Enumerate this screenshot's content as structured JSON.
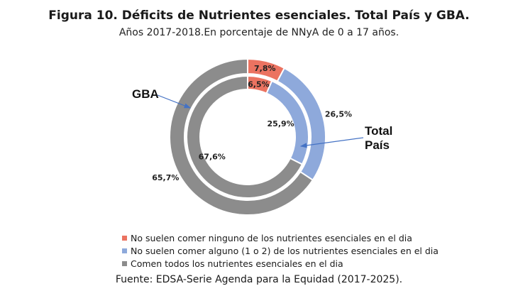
{
  "chart_data": {
    "type": "pie",
    "title": "Figura 10. Déficits de Nutrientes esenciales. Total País y GBA.",
    "subtitle": "Años 2017-2018.En porcentaje de NNyA de 0 a 17 años.",
    "categories": [
      "No suelen comer ninguno de los nutrientes esenciales en el dia",
      "No suelen comer alguno (1 o 2) de los nutrientes esenciales en el dia",
      "Comen todos los nutrientes esenciales en el dia"
    ],
    "colors": [
      "#EB7361",
      "#8EA9DB",
      "#8C8C8C"
    ],
    "series": [
      {
        "name": "Total País",
        "ring": "outer",
        "values": [
          7.8,
          26.5,
          65.7
        ],
        "labels": [
          "7,8%",
          "26,5%",
          "65,7%"
        ]
      },
      {
        "name": "GBA",
        "ring": "inner",
        "values": [
          6.5,
          25.9,
          67.6
        ],
        "labels": [
          "6,5%",
          "25,9%",
          "67,6%"
        ]
      }
    ],
    "callouts": {
      "outer": "Total País",
      "inner": "GBA"
    },
    "legend_position": "bottom",
    "source": "Fuente: EDSA-Serie Agenda para la Equidad (2017-2025)."
  }
}
